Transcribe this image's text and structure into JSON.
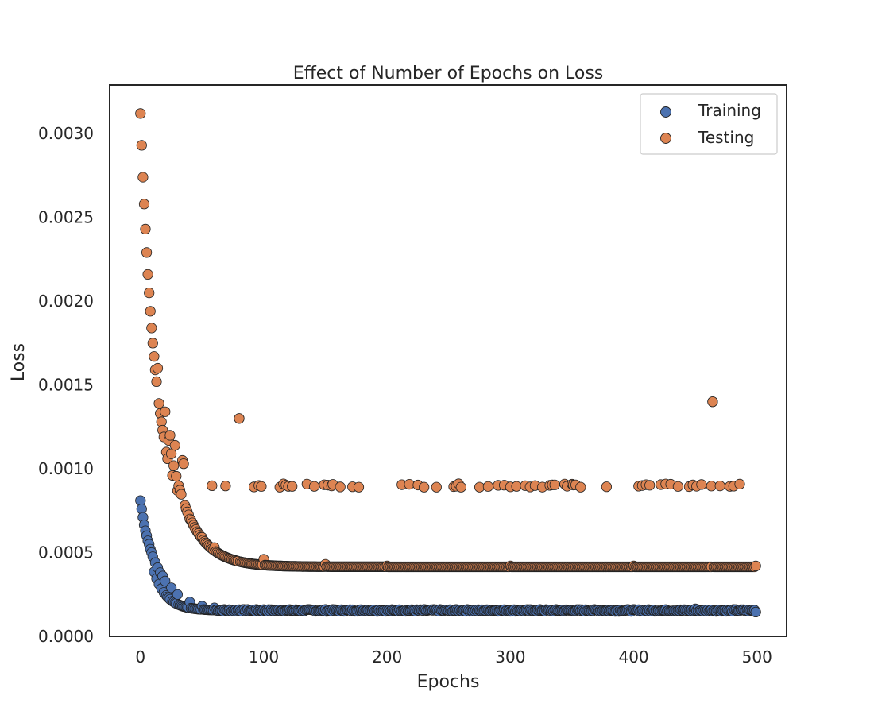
{
  "chart_data": {
    "type": "scatter",
    "title": "Effect of Number of Epochs on Loss",
    "xlabel": "Epochs",
    "ylabel": "Loss",
    "xlim": [
      -25,
      524
    ],
    "ylim": [
      0,
      0.00329
    ],
    "xticks": [
      0,
      100,
      200,
      300,
      400,
      500
    ],
    "xtick_labels": [
      "0",
      "100",
      "200",
      "300",
      "400",
      "500"
    ],
    "yticks": [
      0,
      0.0005,
      0.001,
      0.0015,
      0.002,
      0.0025,
      0.003
    ],
    "ytick_labels": [
      "0.0000",
      "0.0005",
      "0.0010",
      "0.0015",
      "0.0020",
      "0.0025",
      "0.0030"
    ],
    "grid": false,
    "legend_position": "top-right",
    "colors": {
      "Training": "#4c72b0",
      "Testing": "#dd8452",
      "edge": "#222222"
    },
    "series": [
      {
        "name": "Training",
        "epochs": "0-499",
        "curve": {
          "asymptote": 0.000155,
          "initial": 0.00081,
          "decay_epochs": 10.5
        },
        "points": [
          [
            0,
            0.00081
          ],
          [
            1,
            0.00076
          ],
          [
            2,
            0.00071
          ],
          [
            3,
            0.000665
          ],
          [
            4,
            0.00063
          ],
          [
            5,
            0.0006
          ],
          [
            6,
            0.00057
          ],
          [
            7,
            0.00055
          ],
          [
            8,
            0.00052
          ],
          [
            9,
            0.0005
          ],
          [
            10,
            0.000475
          ],
          [
            12,
            0.00044
          ],
          [
            14,
            0.00041
          ],
          [
            16,
            0.00038
          ],
          [
            18,
            0.00036
          ],
          [
            20,
            0.00033
          ],
          [
            25,
            0.00029
          ],
          [
            30,
            0.00025
          ],
          [
            40,
            0.000205
          ],
          [
            50,
            0.00018
          ],
          [
            60,
            0.00017
          ],
          [
            80,
            0.00016
          ],
          [
            100,
            0.000157
          ],
          [
            200,
            0.000155
          ],
          [
            300,
            0.000155
          ],
          [
            400,
            0.000155
          ],
          [
            450,
            0.000165
          ],
          [
            499,
            0.00015
          ]
        ]
      },
      {
        "name": "Testing",
        "epochs": "0-499",
        "curve": {
          "asymptote": 0.000415,
          "initial": 0.00312,
          "decay_epochs": 18
        },
        "points": [
          [
            0,
            0.00312
          ],
          [
            1,
            0.00293
          ],
          [
            2,
            0.00274
          ],
          [
            3,
            0.00258
          ],
          [
            4,
            0.00243
          ],
          [
            5,
            0.00229
          ],
          [
            6,
            0.00216
          ],
          [
            7,
            0.00205
          ],
          [
            8,
            0.00194
          ],
          [
            9,
            0.00184
          ],
          [
            10,
            0.00175
          ],
          [
            11,
            0.00167
          ],
          [
            12,
            0.00159
          ],
          [
            13,
            0.00152
          ],
          [
            14,
            0.0016
          ],
          [
            15,
            0.00139
          ],
          [
            16,
            0.00133
          ],
          [
            17,
            0.00128
          ],
          [
            18,
            0.00123
          ],
          [
            19,
            0.00119
          ],
          [
            20,
            0.00134
          ],
          [
            21,
            0.0011
          ],
          [
            22,
            0.00106
          ],
          [
            24,
            0.0012
          ],
          [
            26,
            0.00096
          ],
          [
            28,
            0.00114
          ],
          [
            30,
            0.00087
          ],
          [
            34,
            0.00105
          ],
          [
            35,
            0.00103
          ],
          [
            40,
            0.0007
          ],
          [
            50,
            0.00059
          ],
          [
            60,
            0.00053
          ],
          [
            80,
            0.0013
          ],
          [
            80,
            0.00048
          ],
          [
            100,
            0.00046
          ],
          [
            150,
            0.00043
          ],
          [
            200,
            0.00042
          ],
          [
            300,
            0.00042
          ],
          [
            400,
            0.00042
          ],
          [
            464,
            0.0014
          ],
          [
            499,
            0.00042
          ]
        ],
        "outliers_near_0.0009": {
          "value_range": [
            0.00089,
            0.00091
          ],
          "epochs": [
            58,
            69,
            92,
            96,
            98,
            113,
            116,
            118,
            120,
            123,
            135,
            141,
            149,
            152,
            155,
            156,
            162,
            172,
            177,
            212,
            218,
            225,
            230,
            240,
            254,
            256,
            258,
            260,
            275,
            282,
            290,
            295,
            300,
            305,
            312,
            316,
            320,
            326,
            332,
            334,
            336,
            344,
            346,
            350,
            351,
            353,
            357,
            378,
            404,
            407,
            410,
            413,
            422,
            426,
            430,
            436,
            445,
            448,
            451,
            455,
            463,
            470,
            478,
            481,
            486
          ]
        }
      }
    ]
  }
}
